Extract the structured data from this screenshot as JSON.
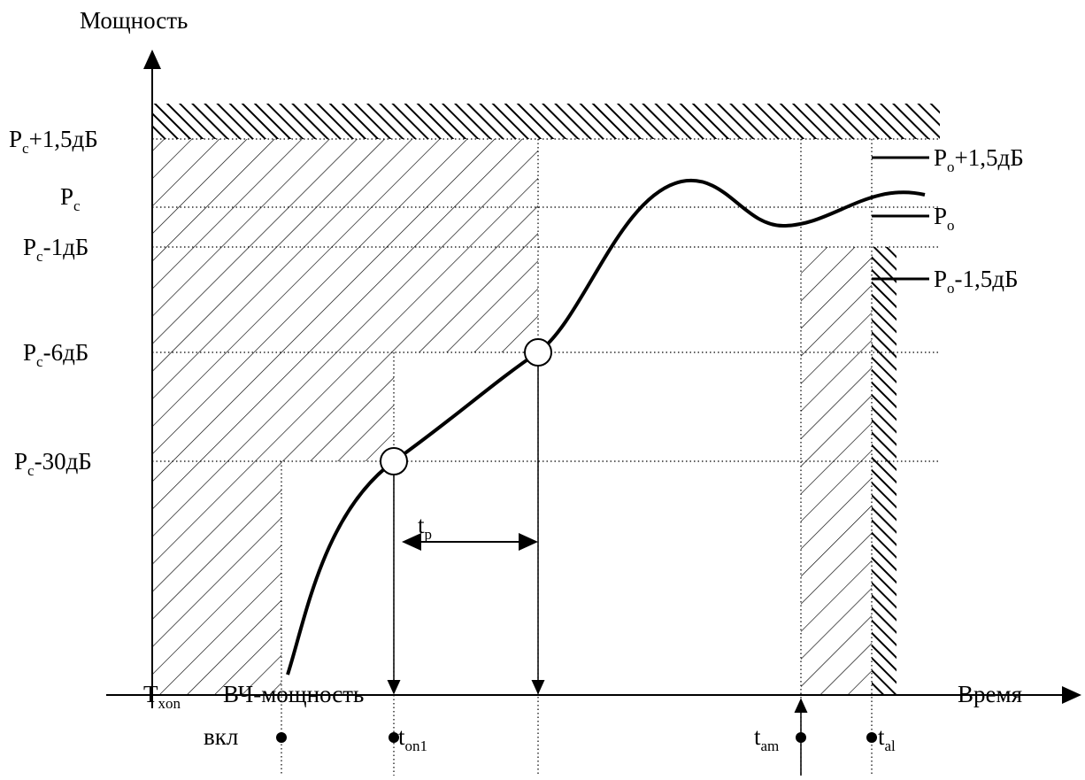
{
  "axes": {
    "y_label": "Мощность",
    "x_label": "Время"
  },
  "levels": [
    {
      "main": "P",
      "sub": "c",
      "rest": "+1,5дБ"
    },
    {
      "main": "P",
      "sub": "c",
      "rest": ""
    },
    {
      "main": "P",
      "sub": "c",
      "rest": "-1дБ"
    },
    {
      "main": "P",
      "sub": "c",
      "rest": "-6дБ"
    },
    {
      "main": "P",
      "sub": "c",
      "rest": "-30дБ"
    }
  ],
  "output_levels": [
    {
      "main": "P",
      "sub": "o",
      "rest": "+1,5дБ"
    },
    {
      "main": "P",
      "sub": "o",
      "rest": ""
    },
    {
      "main": "P",
      "sub": "o",
      "rest": "-1,5дБ"
    }
  ],
  "time_marks": {
    "t_xon": {
      "main": "T",
      "sub": "xon"
    },
    "rf_power": "ВЧ-мощность",
    "on": "вкл",
    "t_on1": {
      "main": "t",
      "sub": "on1"
    },
    "t_p": {
      "main": "t",
      "sub": "p"
    },
    "t_am": {
      "main": "t",
      "sub": "am"
    },
    "t_al": {
      "main": "t",
      "sub": "al"
    }
  }
}
